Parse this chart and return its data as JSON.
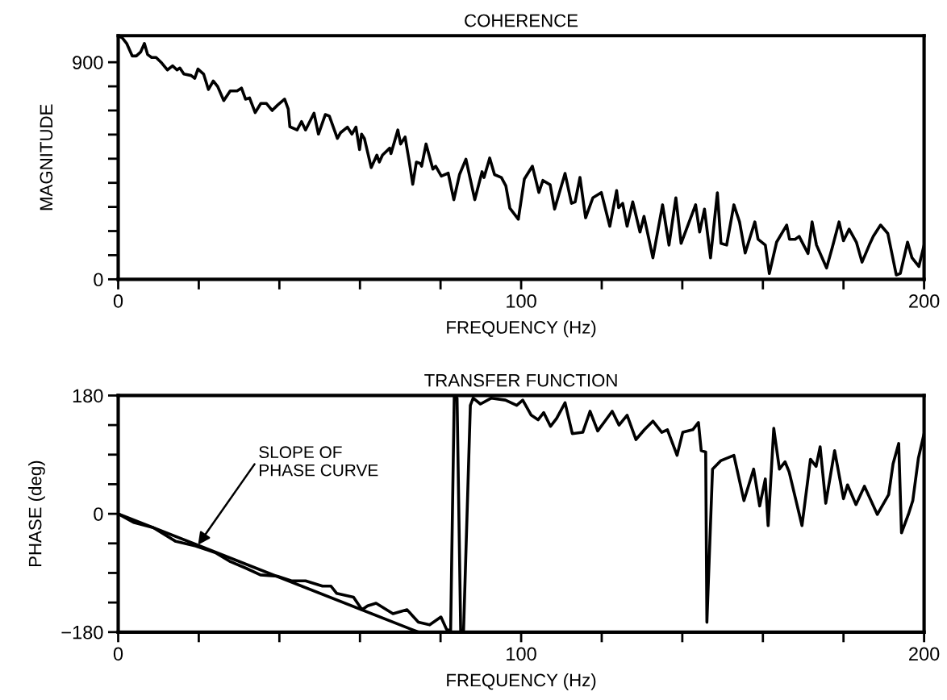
{
  "chart_data": [
    {
      "type": "line",
      "title": "COHERENCE",
      "xlabel": "FREQUENCY (Hz)",
      "ylabel": "MAGNITUDE",
      "xlim": [
        0,
        200
      ],
      "xticks": [
        0,
        {
          "value": 20,
          "label": null
        },
        {
          "value": 40,
          "label": null
        },
        {
          "value": 60,
          "label": null
        },
        {
          "value": 80,
          "label": null
        },
        100,
        {
          "value": 120,
          "label": null
        },
        {
          "value": 140,
          "label": null
        },
        {
          "value": 160,
          "label": null
        },
        {
          "value": 180,
          "label": null
        },
        200
      ],
      "ylim": [
        0,
        1010
      ],
      "yticks": [
        0,
        {
          "value": 100,
          "label": null
        },
        {
          "value": 200,
          "label": null
        },
        {
          "value": 300,
          "label": null
        },
        {
          "value": 400,
          "label": null
        },
        {
          "value": 500,
          "label": null
        },
        {
          "value": 600,
          "label": null
        },
        {
          "value": 700,
          "label": null
        },
        {
          "value": 800,
          "label": null
        },
        900
      ],
      "grid": false,
      "marker": "none",
      "line_style": "solid",
      "series": [
        {
          "color": "#000000",
          "x": [
            0.3,
            1.0,
            2.1,
            3.5,
            4.5,
            5.6,
            6.5,
            7.3,
            8.3,
            9.4,
            10.8,
            12.2,
            13.5,
            14.6,
            15.3,
            16.3,
            18.1,
            19.0,
            19.8,
            21.2,
            22.4,
            23.6,
            24.7,
            26.2,
            27.8,
            29.5,
            30.6,
            31.6,
            32.6,
            34.0,
            35.4,
            36.8,
            38.2,
            39.6,
            41.3,
            42.2,
            42.6,
            44.4,
            45.5,
            46.5,
            48.6,
            49.7,
            51.4,
            52.4,
            54.4,
            55.2,
            56.9,
            58.0,
            59.0,
            59.9,
            60.4,
            61.1,
            62.8,
            64.2,
            64.8,
            65.6,
            67.4,
            67.7,
            69.4,
            70.1,
            71.2,
            72.2,
            73.1,
            74.0,
            75.0,
            75.3,
            76.4,
            78.1,
            78.8,
            80.2,
            81.9,
            83.3,
            84.7,
            86.3,
            88.5,
            90.3,
            90.8,
            92.2,
            93.4,
            95.1,
            96.2,
            97.2,
            99.3,
            100.8,
            102.8,
            104.4,
            105.4,
            107.2,
            108.3,
            110.9,
            112.5,
            113.4,
            114.6,
            116.0,
            117.8,
            119.9,
            122.0,
            123.7,
            124.2,
            125.2,
            126.3,
            127.7,
            129.5,
            130.5,
            132.7,
            135.1,
            136.7,
            138.4,
            139.7,
            143.3,
            144.3,
            145.5,
            147.0,
            148.7,
            149.6,
            151.0,
            152.8,
            154.2,
            155.6,
            158.0,
            158.8,
            160.6,
            161.6,
            163.4,
            165.9,
            166.6,
            168.0,
            169.0,
            170.1,
            171.2,
            172.2,
            173.3,
            175.8,
            177.2,
            178.9,
            180.0,
            181.4,
            183.2,
            184.6,
            186.4,
            187.4,
            189.2,
            191.0,
            193.1,
            194.1,
            195.9,
            197.0,
            198.7,
            200.0
          ],
          "values": [
            1007,
            1001,
            978,
            926,
            926,
            943,
            978,
            932,
            920,
            920,
            897,
            868,
            885,
            868,
            876,
            851,
            845,
            833,
            872,
            851,
            787,
            822,
            799,
            741,
            781,
            781,
            793,
            747,
            752,
            691,
            729,
            729,
            700,
            723,
            747,
            706,
            633,
            619,
            654,
            619,
            689,
            602,
            683,
            677,
            584,
            608,
            631,
            602,
            631,
            538,
            602,
            584,
            463,
            515,
            486,
            515,
            544,
            521,
            619,
            561,
            590,
            492,
            394,
            486,
            480,
            469,
            561,
            457,
            469,
            428,
            440,
            330,
            434,
            498,
            330,
            446,
            422,
            503,
            434,
            422,
            388,
            295,
            249,
            416,
            469,
            360,
            410,
            392,
            291,
            439,
            315,
            321,
            422,
            255,
            338,
            360,
            220,
            368,
            297,
            315,
            220,
            321,
            196,
            261,
            89,
            309,
            142,
            338,
            149,
            309,
            196,
            291,
            89,
            359,
            149,
            142,
            309,
            238,
            109,
            238,
            166,
            142,
            24,
            154,
            225,
            166,
            166,
            178,
            142,
            107,
            238,
            142,
            47,
            131,
            238,
            160,
            208,
            154,
            71,
            142,
            178,
            225,
            190,
            18,
            24,
            154,
            89,
            53,
            142
          ]
        }
      ]
    },
    {
      "type": "line",
      "title": "TRANSFER FUNCTION",
      "xlabel": "FREQUENCY (Hz)",
      "ylabel": "PHASE (deg)",
      "xlim": [
        0,
        200
      ],
      "xticks": [
        0,
        {
          "value": 20,
          "label": null
        },
        {
          "value": 40,
          "label": null
        },
        {
          "value": 60,
          "label": null
        },
        {
          "value": 80,
          "label": null
        },
        100,
        {
          "value": 120,
          "label": null
        },
        {
          "value": 140,
          "label": null
        },
        {
          "value": 160,
          "label": null
        },
        {
          "value": 180,
          "label": null
        },
        200
      ],
      "ylim": [
        -180,
        180
      ],
      "yticks": [
        {
          "value": -180,
          "label": "−180"
        },
        {
          "value": -135,
          "label": null
        },
        {
          "value": -90,
          "label": null
        },
        {
          "value": -45,
          "label": null
        },
        0,
        {
          "value": 45,
          "label": null
        },
        {
          "value": 90,
          "label": null
        },
        {
          "value": 135,
          "label": null
        },
        180
      ],
      "grid": false,
      "marker": "none",
      "line_style": "solid",
      "annotations": [
        {
          "text": "SLOPE OF\nPHASE CURVE",
          "x": 19.5,
          "y": -50
        }
      ],
      "series": [
        {
          "color": "#000000",
          "x": [
            0,
            3.8,
            8.7,
            14.3,
            19.2,
            24.1,
            27.6,
            31.8,
            35.3,
            39.5,
            43.0,
            46.5,
            50.7,
            52.8,
            54.2,
            58.4,
            60.5,
            61.9,
            64.0,
            66.1,
            68.2,
            71.7,
            74.5,
            77.3,
            80.1,
            81.5,
            82.5,
            83.4,
            84.1,
            85.0,
            85.7,
            87.4,
            88.1,
            89.9,
            92.6,
            96.1,
            98.9,
            100.4,
            102.5,
            104.2,
            105.6,
            107.3,
            108.8,
            110.9,
            112.7,
            115.3,
            117.1,
            119.0,
            120.8,
            122.6,
            124.3,
            126.3,
            128.5,
            130.6,
            132.7,
            134.9,
            136.3,
            138.7,
            140.1,
            142.6,
            144.0,
            144.7,
            145.8,
            146.1,
            147.5,
            149.6,
            152.8,
            155.3,
            157.7,
            159.2,
            160.6,
            161.3,
            162.7,
            164.1,
            165.5,
            166.5,
            169.7,
            171.8,
            173.2,
            174.2,
            175.6,
            177.8,
            180.0,
            181.0,
            183.1,
            185.2,
            188.4,
            191.2,
            192.3,
            193.7,
            194.4,
            196.1,
            197.2,
            198.6,
            200.0
          ],
          "values": [
            0,
            -13,
            -21,
            -42,
            -49,
            -59,
            -72,
            -83,
            -93,
            -95,
            -102,
            -102,
            -110,
            -110,
            -121,
            -127,
            -146,
            -140,
            -136,
            -144,
            -152,
            -146,
            -165,
            -169,
            -157,
            -176,
            -178,
            178,
            176,
            -178,
            -180,
            165,
            176,
            167,
            176,
            173,
            165,
            173,
            150,
            143,
            154,
            133,
            145,
            169,
            122,
            124,
            156,
            126,
            141,
            156,
            135,
            150,
            113,
            128,
            141,
            124,
            128,
            89,
            124,
            128,
            139,
            96,
            94,
            -165,
            68,
            81,
            89,
            20,
            68,
            12,
            53,
            -18,
            130,
            68,
            79,
            64,
            -18,
            83,
            72,
            102,
            16,
            96,
            23,
            44,
            14,
            42,
            -1,
            29,
            76,
            107,
            -29,
            -1,
            20,
            85,
            122
          ]
        },
        {
          "type": "line",
          "color": "#000000",
          "x": [
            0,
            74.5
          ],
          "values": [
            0,
            -180
          ]
        }
      ]
    }
  ]
}
